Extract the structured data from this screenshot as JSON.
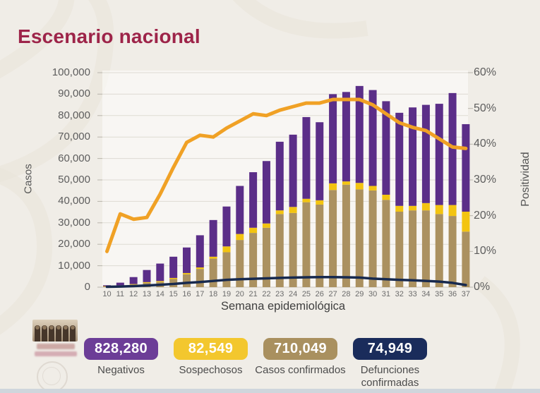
{
  "title": "Escenario nacional",
  "chart_data": {
    "type": "bar",
    "subtype": "stacked bars with two overlay lines",
    "xlabel": "Semana epidemiológica",
    "ylabel_left": "Casos",
    "ylabel_right": "Positividad",
    "ylim_left": [
      0,
      100000
    ],
    "ylim_right_percent": [
      0,
      60
    ],
    "grid": true,
    "legend_position": "bottom badges",
    "yticks_left": [
      "0",
      "10,000",
      "20,000",
      "30,000",
      "40,000",
      "50,000",
      "60,000",
      "70,000",
      "80,000",
      "90,000",
      "100,000"
    ],
    "yticks_right": [
      "0%",
      "10%",
      "20%",
      "30%",
      "40%",
      "50%",
      "60%"
    ],
    "categories": [
      "10",
      "11",
      "12",
      "13",
      "14",
      "15",
      "16",
      "17",
      "18",
      "19",
      "20",
      "21",
      "22",
      "23",
      "24",
      "25",
      "26",
      "27",
      "28",
      "29",
      "30",
      "31",
      "32",
      "33",
      "34",
      "35",
      "36",
      "37"
    ],
    "series": [
      {
        "name": "Casos confirmados",
        "type": "bar",
        "stack": "base",
        "color": "#ab9160",
        "values": [
          400,
          700,
          1200,
          2000,
          2400,
          3800,
          6000,
          8500,
          13300,
          16300,
          22000,
          25300,
          27700,
          34100,
          34600,
          39600,
          38500,
          45300,
          47800,
          45600,
          45100,
          40700,
          35200,
          35800,
          35800,
          34100,
          33200,
          25900
        ]
      },
      {
        "name": "Sospechosos",
        "type": "bar",
        "stack": "middle",
        "color": "#f3c411",
        "values": [
          100,
          150,
          250,
          350,
          450,
          500,
          600,
          700,
          900,
          2700,
          2800,
          2400,
          2000,
          1700,
          2800,
          1600,
          2000,
          3100,
          1500,
          3000,
          2100,
          2400,
          2700,
          2100,
          3400,
          4200,
          5100,
          9300
        ]
      },
      {
        "name": "Negativos",
        "type": "bar",
        "stack": "top",
        "color": "#5b2e88",
        "values": [
          400,
          1250,
          3250,
          5650,
          8150,
          9900,
          11900,
          15000,
          17100,
          18600,
          22400,
          25900,
          29100,
          32000,
          33700,
          38100,
          36400,
          41600,
          41700,
          45200,
          44700,
          43600,
          43400,
          45900,
          45800,
          47200,
          52200,
          40800
        ]
      },
      {
        "name": "Defunciones confirmadas",
        "type": "line",
        "axis": "left",
        "color": "#17294e",
        "values": [
          150,
          300,
          500,
          800,
          1100,
          1500,
          2000,
          2400,
          2900,
          3400,
          3700,
          3900,
          4100,
          4300,
          4500,
          4600,
          4700,
          4700,
          4600,
          4500,
          4000,
          3700,
          3400,
          3200,
          2900,
          2600,
          2000,
          1000
        ]
      },
      {
        "name": "Positividad",
        "type": "line",
        "axis": "right",
        "unit": "%",
        "color": "#f0a125",
        "values": [
          10,
          20.5,
          19,
          19.5,
          26,
          33.5,
          40.5,
          42.5,
          42,
          44.5,
          46.5,
          48.5,
          48,
          49.5,
          50.5,
          51.5,
          51.5,
          52.5,
          52.5,
          52.5,
          51,
          48.5,
          46,
          44.7,
          43.8,
          41.5,
          39.2,
          38.8
        ]
      }
    ]
  },
  "badges": [
    {
      "value": "828,280",
      "label": "Negativos",
      "color": "#6c3d97"
    },
    {
      "value": "82,549",
      "label": "Sospechosos",
      "color": "#f3c72e"
    },
    {
      "value": "710,049",
      "label": "Casos confirmados",
      "color": "#a9905f"
    },
    {
      "value": "74,949",
      "label": "Defunciones confirmadas",
      "color": "#1a2c5b"
    }
  ]
}
